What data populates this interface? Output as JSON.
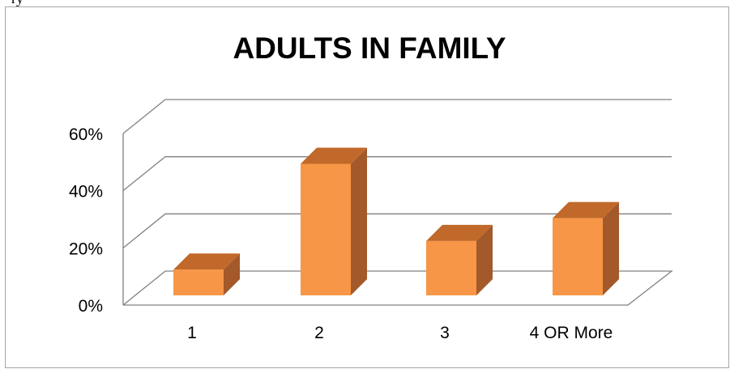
{
  "chart_data": {
    "type": "bar",
    "title": "ADULTS IN FAMILY",
    "xlabel": "",
    "ylabel": "",
    "categories": [
      "1",
      "2",
      "3",
      "4 OR More"
    ],
    "values": [
      9,
      46,
      19,
      27
    ],
    "value_unit": "%",
    "ylim": [
      0,
      60
    ],
    "yticks": [
      0,
      20,
      40,
      60
    ],
    "ytick_labels": [
      "0%",
      "20%",
      "40%",
      "60%"
    ],
    "grid": true,
    "legend": "none",
    "style": "3d-clustered-column",
    "colors": {
      "bar_front": "#f79646",
      "bar_top": "#c0692a",
      "bar_side": "#a4592a",
      "grid": "#808080",
      "text": "#000000"
    }
  },
  "partial_text_top": "ry"
}
